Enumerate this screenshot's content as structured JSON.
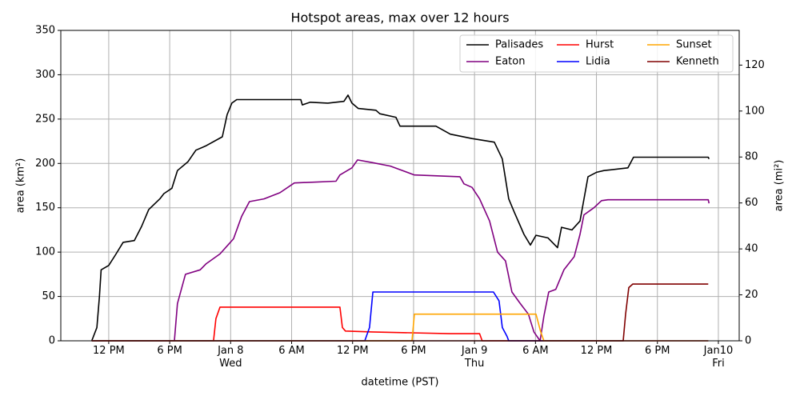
{
  "chart_data": {
    "type": "line",
    "title": "Hotspot areas, max over 12 hours",
    "xlabel": "datetime (PST)",
    "ylabel": "area (km²)",
    "y2label": "area (mi²)",
    "xlim": [
      "Jan 7 07:17",
      "Jan 10 02:03"
    ],
    "xticks": [
      {
        "value": "Jan 7 12:00",
        "label": "12 PM"
      },
      {
        "value": "Jan 7 18:00",
        "label": "6 PM"
      },
      {
        "value": "Jan 8 00:00",
        "label": "Jan 8\nWed"
      },
      {
        "value": "Jan 8 06:00",
        "label": "6 AM"
      },
      {
        "value": "Jan 8 12:00",
        "label": "12 PM"
      },
      {
        "value": "Jan 8 18:00",
        "label": "6 PM"
      },
      {
        "value": "Jan 9 00:00",
        "label": "Jan 9\nThu"
      },
      {
        "value": "Jan 9 06:00",
        "label": "6 AM"
      },
      {
        "value": "Jan 9 12:00",
        "label": "12 PM"
      },
      {
        "value": "Jan 9 18:00",
        "label": "6 PM"
      },
      {
        "value": "Jan 10 00:00",
        "label": "Jan10\nFri"
      }
    ],
    "ylim": [
      0,
      350
    ],
    "yticks": [
      0,
      50,
      100,
      150,
      200,
      250,
      300,
      350
    ],
    "y2lim": [
      0,
      135.1
    ],
    "y2ticks": [
      0,
      20,
      40,
      60,
      80,
      100,
      120
    ],
    "grid": true,
    "legend": "upper right",
    "series": [
      {
        "name": "Palisades",
        "color": "#000000",
        "x": [
          "Jan 7 10:20",
          "Jan 7 10:50",
          "Jan 7 11:05",
          "Jan 7 11:15",
          "Jan 7 12:00",
          "Jan 7 12:40",
          "Jan 7 13:25",
          "Jan 7 14:31",
          "Jan 7 15:14",
          "Jan 7 15:56",
          "Jan 7 17:02",
          "Jan 7 17:26",
          "Jan 7 18:13",
          "Jan 7 18:46",
          "Jan 7 19:48",
          "Jan 7 20:35",
          "Jan 7 21:36",
          "Jan 7 23:11",
          "Jan 7 23:39",
          "Jan 8 00:07",
          "Jan 8 00:36",
          "Jan 8 06:54",
          "Jan 8 07:03",
          "Jan 8 07:50",
          "Jan 8 09:34",
          "Jan 8 11:09",
          "Jan 8 11:33",
          "Jan 8 11:56",
          "Jan 8 12:34",
          "Jan 8 14:18",
          "Jan 8 14:41",
          "Jan 8 16:16",
          "Jan 8 16:40",
          "Jan 8 20:12",
          "Jan 8 21:37",
          "Jan 8 23:45",
          "Jan 9 01:57",
          "Jan 9 02:44",
          "Jan 9 03:22",
          "Jan 9 03:55",
          "Jan 9 04:52",
          "Jan 9 05:30",
          "Jan 9 06:03",
          "Jan 9 07:14",
          "Jan 9 08:10",
          "Jan 9 08:34",
          "Jan 9 09:35",
          "Jan 9 10:23",
          "Jan 9 11:10",
          "Jan 9 12:00",
          "Jan 9 12:44",
          "Jan 9 15:06",
          "Jan 9 15:39",
          "Jan 9 23:00",
          "Jan 9 23:05"
        ],
        "values": [
          0,
          15,
          50,
          80,
          85,
          97,
          111,
          113,
          129,
          148,
          160,
          166,
          172,
          192,
          202,
          215,
          220,
          230,
          255,
          268,
          272,
          272,
          266,
          269,
          268,
          270,
          277,
          268,
          262,
          260,
          256,
          252,
          242,
          242,
          233,
          228,
          224,
          205,
          160,
          145,
          120,
          108,
          119,
          116,
          105,
          128,
          125,
          135,
          185,
          190,
          192,
          195,
          207,
          207,
          205
        ]
      },
      {
        "name": "Eaton",
        "color": "#800080",
        "x": [
          "Jan 7 10:20",
          "Jan 7 18:28",
          "Jan 7 18:46",
          "Jan 7 19:33",
          "Jan 7 21:00",
          "Jan 7 21:36",
          "Jan 7 22:57",
          "Jan 7 23:44",
          "Jan 8 00:17",
          "Jan 8 01:04",
          "Jan 8 01:51",
          "Jan 8 03:17",
          "Jan 8 04:51",
          "Jan 8 06:16",
          "Jan 8 10:22",
          "Jan 8 10:45",
          "Jan 8 11:56",
          "Jan 8 12:29",
          "Jan 8 13:55",
          "Jan 8 15:43",
          "Jan 8 18:05",
          "Jan 8 22:34",
          "Jan 8 22:58",
          "Jan 8 23:45",
          "Jan 9 00:30",
          "Jan 9 01:29",
          "Jan 9 02:16",
          "Jan 9 03:03",
          "Jan 9 03:41",
          "Jan 9 04:30",
          "Jan 9 05:18",
          "Jan 9 05:51",
          "Jan 9 06:27",
          "Jan 9 06:50",
          "Jan 9 07:18",
          "Jan 9 08:00",
          "Jan 9 08:48",
          "Jan 9 09:49",
          "Jan 9 10:23",
          "Jan 9 10:46",
          "Jan 9 11:45",
          "Jan 9 12:30",
          "Jan 9 13:08",
          "Jan 9 23:00",
          "Jan 9 23:05"
        ],
        "values": [
          0,
          0,
          42,
          75,
          80,
          87,
          98,
          108,
          115,
          140,
          157,
          160,
          167,
          178,
          180,
          187,
          195,
          204,
          201,
          197,
          187,
          185,
          177,
          173,
          160,
          135,
          100,
          90,
          55,
          42,
          30,
          10,
          0,
          28,
          55,
          58,
          80,
          95,
          120,
          142,
          150,
          158,
          159,
          159,
          155
        ]
      },
      {
        "name": "Hurst",
        "color": "#ff0000",
        "x": [
          "Jan 7 10:20",
          "Jan 7 22:19",
          "Jan 7 22:33",
          "Jan 7 22:57",
          "Jan 8 10:45",
          "Jan 8 11:00",
          "Jan 8 11:18",
          "Jan 8 13:55",
          "Jan 8 21:33",
          "Jan 9 00:30",
          "Jan 9 00:45",
          "Jan 9 23:00"
        ],
        "values": [
          0,
          0,
          25,
          38,
          38,
          15,
          11,
          10,
          8,
          8,
          0,
          0
        ]
      },
      {
        "name": "Lidia",
        "color": "#0000ff",
        "x": [
          "Jan 7 10:20",
          "Jan 8 13:12",
          "Jan 8 13:40",
          "Jan 8 14:00",
          "Jan 9 01:52",
          "Jan 9 02:25",
          "Jan 9 02:44",
          "Jan 9 03:12",
          "Jan 9 03:22",
          "Jan 9 23:00"
        ],
        "values": [
          0,
          0,
          15,
          55,
          55,
          45,
          15,
          5,
          0,
          0
        ]
      },
      {
        "name": "Sunset",
        "color": "#ffa500",
        "x": [
          "Jan 7 10:20",
          "Jan 8 17:51",
          "Jan 8 18:05",
          "Jan 9 06:03",
          "Jan 9 06:31",
          "Jan 9 06:50",
          "Jan 9 23:00"
        ],
        "values": [
          0,
          0,
          30,
          30,
          10,
          0,
          0
        ]
      },
      {
        "name": "Kenneth",
        "color": "#800000",
        "x": [
          "Jan 7 10:20",
          "Jan 9 14:38",
          "Jan 9 14:52",
          "Jan 9 15:11",
          "Jan 9 15:34",
          "Jan 9 23:00"
        ],
        "values": [
          0,
          0,
          30,
          60,
          64,
          64
        ]
      }
    ]
  }
}
